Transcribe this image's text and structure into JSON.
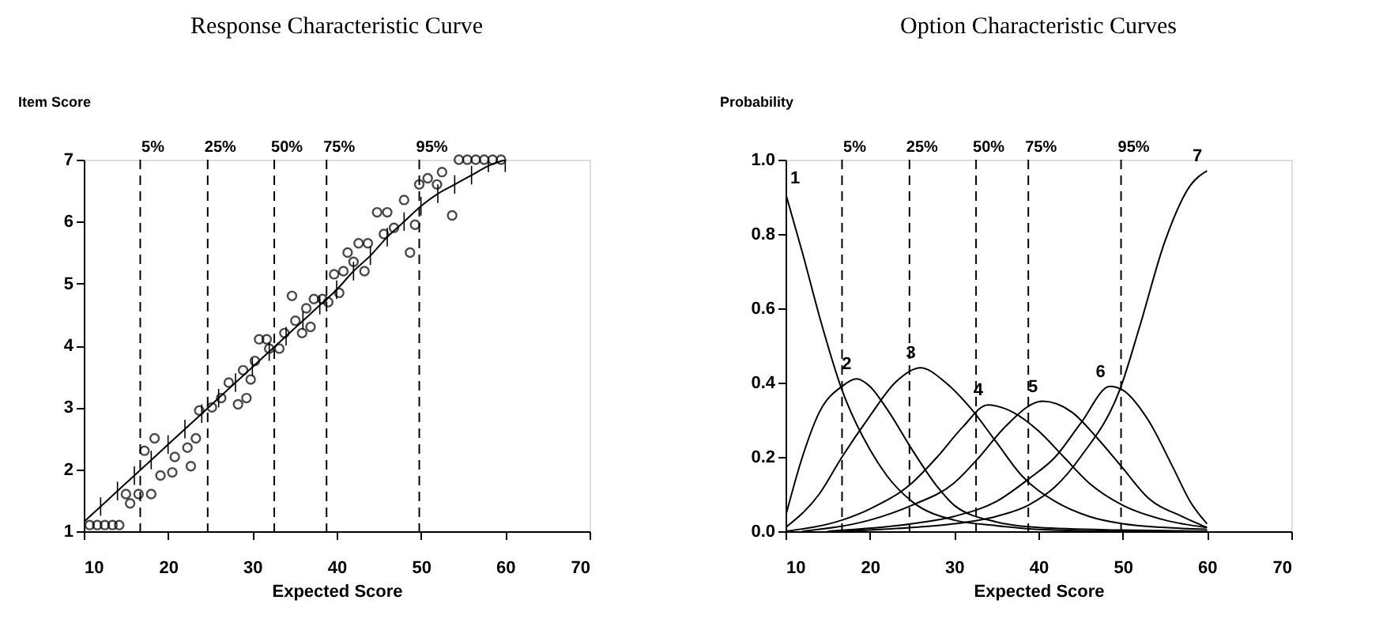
{
  "chart_data": [
    {
      "type": "scatter",
      "title": "Response Characteristic Curve",
      "xlabel": "Expected Score",
      "ylabel": "Item Score",
      "xlim": [
        10,
        70
      ],
      "xticks": [
        10,
        20,
        30,
        40,
        50,
        60,
        70
      ],
      "ylim": [
        1,
        7
      ],
      "yticks": [
        1,
        2,
        3,
        4,
        5,
        6,
        7
      ],
      "grid": false,
      "series": [
        {
          "type": "scatter",
          "marker": "circle",
          "color": "#000000",
          "x": [
            10.7,
            11.6,
            12.5,
            13.4,
            14.2,
            15.5,
            15,
            16.5,
            18,
            17.2,
            18.4,
            19.1,
            20.5,
            20.8,
            22.3,
            23.3,
            22.7,
            23.7,
            25.2,
            26.3,
            27.2,
            28.3,
            29.3,
            28.9,
            29.8,
            30.3,
            30.8,
            31.7,
            32,
            33.2,
            33.8,
            34.7,
            35.1,
            35.9,
            36.4,
            36.9,
            37.3,
            38.3,
            39,
            39.7,
            40.8,
            40.3,
            41.3,
            42,
            43.3,
            42.6,
            43.7,
            44.8,
            46,
            45.6,
            46.8,
            48,
            48.7,
            49.3,
            49.8,
            50.8,
            51.9,
            52.5,
            53.7,
            54.5,
            55.5,
            56.5,
            57.5,
            58.5,
            59.5
          ],
          "values": [
            1.1,
            1.1,
            1.1,
            1.1,
            1.1,
            1.45,
            1.6,
            1.6,
            1.6,
            2.3,
            2.5,
            1.9,
            1.95,
            2.2,
            2.35,
            2.5,
            2.05,
            2.95,
            3.0,
            3.15,
            3.4,
            3.05,
            3.15,
            3.6,
            3.45,
            3.75,
            4.1,
            4.1,
            3.95,
            3.95,
            4.2,
            4.8,
            4.4,
            4.2,
            4.6,
            4.3,
            4.75,
            4.75,
            4.7,
            5.15,
            5.2,
            4.85,
            5.5,
            5.35,
            5.2,
            5.65,
            5.65,
            6.15,
            6.15,
            5.8,
            5.9,
            6.35,
            5.5,
            5.95,
            6.6,
            6.7,
            6.6,
            6.8,
            6.1,
            7.0,
            7.0,
            7.0,
            7.0,
            7.0,
            7.0
          ]
        },
        {
          "type": "line",
          "marker": "none",
          "line_style": "solid",
          "color": "#000000",
          "x": [
            10,
            12,
            14,
            16,
            18,
            20,
            22,
            24,
            26,
            28,
            30,
            32,
            34,
            36,
            38,
            40,
            42,
            44,
            46,
            48,
            50,
            52,
            54,
            56,
            58,
            60
          ],
          "values": [
            1.15,
            1.4,
            1.65,
            1.9,
            2.15,
            2.4,
            2.65,
            2.9,
            3.15,
            3.4,
            3.65,
            3.9,
            4.15,
            4.4,
            4.65,
            4.9,
            5.2,
            5.45,
            5.75,
            6.0,
            6.25,
            6.45,
            6.6,
            6.75,
            6.9,
            7.0
          ],
          "errors": [
            null,
            0.15,
            0.15,
            0.15,
            0.15,
            0.15,
            0.15,
            0.15,
            0.15,
            0.15,
            0.15,
            0.15,
            0.15,
            0.15,
            0.15,
            0.15,
            0.15,
            0.15,
            0.15,
            0.15,
            0.15,
            0.15,
            0.15,
            0.15,
            0.1,
            [
              6.8,
              7.0
            ]
          ]
        }
      ],
      "ref_lines": [
        {
          "axis": "x",
          "value": 16.7,
          "line_style": "dashed"
        },
        {
          "axis": "x",
          "value": 24.7,
          "line_style": "dashed"
        },
        {
          "axis": "x",
          "value": 32.6,
          "line_style": "dashed"
        },
        {
          "axis": "x",
          "value": 38.8,
          "line_style": "dashed"
        },
        {
          "axis": "x",
          "value": 49.8,
          "line_style": "dashed"
        }
      ],
      "annotations": [
        {
          "text": "5%",
          "x": 16.7,
          "y": 7
        },
        {
          "text": "25%",
          "x": 24.7,
          "y": 7
        },
        {
          "text": "50%",
          "x": 32.6,
          "y": 7
        },
        {
          "text": "75%",
          "x": 38.8,
          "y": 7
        },
        {
          "text": "95%",
          "x": 49.8,
          "y": 7
        }
      ]
    },
    {
      "type": "line",
      "title": "Option Characteristic Curves",
      "xlabel": "Expected Score",
      "ylabel": "Probability",
      "xlim": [
        10,
        70
      ],
      "xticks": [
        10,
        20,
        30,
        40,
        50,
        60,
        70
      ],
      "ylim": [
        0,
        1
      ],
      "yticks": [
        {
          "value": 0,
          "label": "0.0"
        },
        0.2,
        0.4,
        0.6,
        0.8,
        {
          "value": 1,
          "label": "1.0"
        }
      ],
      "grid": false,
      "marker": "none",
      "line_style": "solid",
      "series": [
        {
          "name": "1",
          "color": "#000000",
          "x": [
            10,
            12,
            14,
            16.7,
            20,
            22,
            25,
            30,
            35,
            40,
            50,
            60
          ],
          "values": [
            0.91,
            0.75,
            0.58,
            0.38,
            0.22,
            0.15,
            0.08,
            0.03,
            0.015,
            0.005,
            0,
            0
          ]
        },
        {
          "name": "2",
          "color": "#000000",
          "x": [
            10,
            12,
            14,
            16.7,
            18.4,
            20,
            22,
            25,
            28,
            30,
            35,
            40,
            50,
            60
          ],
          "values": [
            0.04,
            0.2,
            0.32,
            0.39,
            0.41,
            0.39,
            0.33,
            0.22,
            0.12,
            0.07,
            0.025,
            0.01,
            0.003,
            0
          ]
        },
        {
          "name": "3",
          "color": "#000000",
          "x": [
            10,
            14,
            16.7,
            20,
            23,
            26,
            29,
            32,
            35,
            38,
            42,
            46,
            50,
            55,
            60
          ],
          "values": [
            0.01,
            0.1,
            0.2,
            0.31,
            0.4,
            0.44,
            0.4,
            0.33,
            0.24,
            0.15,
            0.08,
            0.04,
            0.02,
            0.01,
            0.005
          ]
        },
        {
          "name": "4",
          "color": "#000000",
          "x": [
            10,
            16.7,
            20,
            25,
            28,
            31,
            34,
            37,
            40,
            43,
            46,
            50,
            55,
            60
          ],
          "values": [
            0,
            0.03,
            0.06,
            0.13,
            0.2,
            0.28,
            0.34,
            0.32,
            0.27,
            0.2,
            0.13,
            0.07,
            0.03,
            0.01
          ]
        },
        {
          "name": "5",
          "color": "#000000",
          "x": [
            12,
            20,
            25,
            30,
            33,
            36,
            40.5,
            44,
            47,
            50,
            53,
            57,
            60
          ],
          "values": [
            0,
            0.03,
            0.07,
            0.13,
            0.2,
            0.28,
            0.35,
            0.32,
            0.25,
            0.17,
            0.09,
            0.04,
            0.01
          ]
        },
        {
          "name": "6",
          "color": "#000000",
          "x": [
            15,
            25,
            30,
            35,
            38.8,
            42,
            45,
            48.5,
            50,
            53,
            56,
            58,
            60
          ],
          "values": [
            0,
            0.02,
            0.04,
            0.08,
            0.14,
            0.2,
            0.29,
            0.39,
            0.38,
            0.3,
            0.17,
            0.08,
            0.02
          ]
        },
        {
          "name": "7",
          "color": "#000000",
          "x": [
            17,
            25,
            30,
            35,
            38.8,
            42,
            45,
            49.8,
            52,
            55,
            58,
            60
          ],
          "values": [
            0,
            0.01,
            0.02,
            0.04,
            0.07,
            0.12,
            0.2,
            0.39,
            0.55,
            0.78,
            0.93,
            0.97
          ]
        }
      ],
      "ref_lines": [
        {
          "axis": "x",
          "value": 16.7,
          "line_style": "dashed"
        },
        {
          "axis": "x",
          "value": 24.7,
          "line_style": "dashed"
        },
        {
          "axis": "x",
          "value": 32.6,
          "line_style": "dashed"
        },
        {
          "axis": "x",
          "value": 38.8,
          "line_style": "dashed"
        },
        {
          "axis": "x",
          "value": 49.8,
          "line_style": "dashed"
        }
      ],
      "annotations": [
        {
          "text": "5%",
          "x": 16.7,
          "y": 1
        },
        {
          "text": "25%",
          "x": 24.7,
          "y": 1
        },
        {
          "text": "50%",
          "x": 32.6,
          "y": 1
        },
        {
          "text": "75%",
          "x": 38.8,
          "y": 1
        },
        {
          "text": "95%",
          "x": 49.8,
          "y": 1
        }
      ]
    }
  ]
}
